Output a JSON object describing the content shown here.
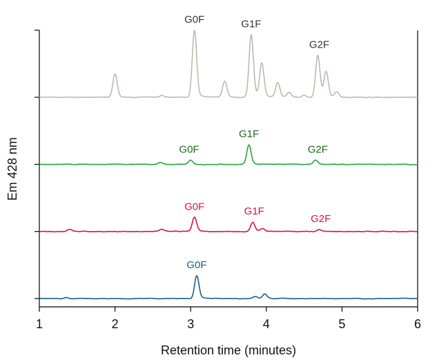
{
  "chart_data": {
    "type": "line",
    "xlabel": "Retention time (minutes)",
    "ylabel": "Em 428 nm",
    "xlim": [
      1,
      6
    ],
    "ylim": [
      -0.12,
      4
    ],
    "xticks": [
      "1",
      "2",
      "3",
      "4",
      "5",
      "6"
    ],
    "yticks": [
      0,
      1,
      2,
      3,
      4
    ],
    "grid": false,
    "series": [
      {
        "color": "#bdb9b0",
        "label_color": "#333333",
        "baseline": 3,
        "peaks": [
          [
            2.0,
            0.35
          ],
          [
            2.62,
            0.03
          ],
          [
            3.05,
            1.0
          ],
          [
            3.45,
            0.24
          ],
          [
            3.8,
            0.93
          ],
          [
            3.94,
            0.5
          ],
          [
            4.15,
            0.22
          ],
          [
            4.3,
            0.07
          ],
          [
            4.5,
            0.03
          ],
          [
            4.68,
            0.62
          ],
          [
            4.79,
            0.37
          ],
          [
            4.93,
            0.08
          ]
        ],
        "labels": [
          {
            "text": "G0F",
            "rt": 3.05
          },
          {
            "text": "G1F",
            "rt": 3.8
          },
          {
            "text": "G2F",
            "rt": 4.7
          }
        ]
      },
      {
        "color": "#22a838",
        "label_color": "#1c6b1c",
        "baseline": 2,
        "peaks": [
          [
            2.6,
            0.03
          ],
          [
            3.0,
            0.06
          ],
          [
            3.77,
            0.29
          ],
          [
            4.65,
            0.06
          ]
        ],
        "labels": [
          {
            "text": "G0F",
            "rt": 2.98
          },
          {
            "text": "G1F",
            "rt": 3.77
          },
          {
            "text": "G2F",
            "rt": 4.68
          }
        ]
      },
      {
        "color": "#e0103a",
        "label_color": "#e0103a",
        "baseline": 1,
        "peaks": [
          [
            1.4,
            0.03
          ],
          [
            2.62,
            0.03
          ],
          [
            3.05,
            0.21
          ],
          [
            3.82,
            0.14
          ],
          [
            3.95,
            0.04
          ],
          [
            4.7,
            0.03
          ]
        ],
        "labels": [
          {
            "text": "G0F",
            "rt": 3.05
          },
          {
            "text": "G1F",
            "rt": 3.84
          },
          {
            "text": "G2F",
            "rt": 4.72
          }
        ]
      },
      {
        "color": "#1a5f85",
        "label_color": "#1a5f85",
        "baseline": 0,
        "peaks": [
          [
            1.35,
            0.02
          ],
          [
            3.08,
            0.34
          ],
          [
            3.85,
            0.03
          ],
          [
            3.98,
            0.07
          ]
        ],
        "labels": [
          {
            "text": "G0F",
            "rt": 3.08
          }
        ]
      }
    ]
  }
}
